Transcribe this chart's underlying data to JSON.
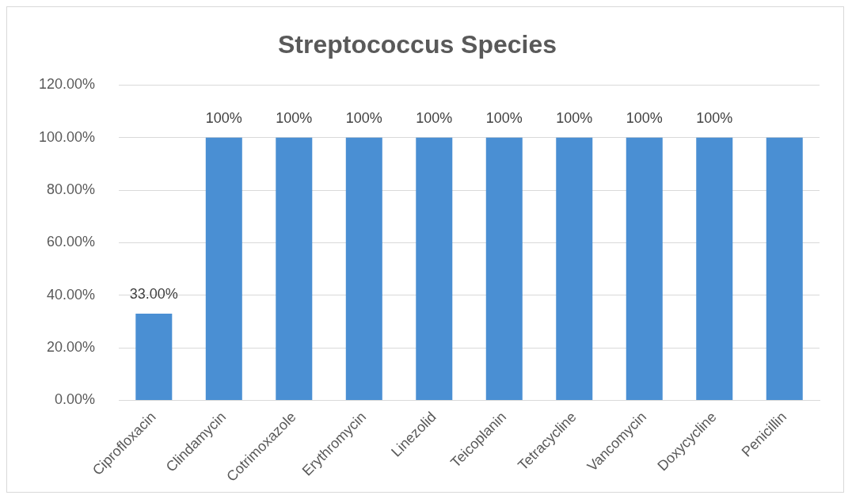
{
  "chart_data": {
    "type": "bar",
    "title": "Streptococcus Species",
    "categories": [
      "Ciprofloxacin",
      "Clindamycin",
      "Cotrimoxazole",
      "Erythromycin",
      "Linezolid",
      "Teicoplanin",
      "Tetracycline",
      "Vancomycin",
      "Doxycycline",
      "Penicillin"
    ],
    "values": [
      33,
      100,
      100,
      100,
      100,
      100,
      100,
      100,
      100,
      100
    ],
    "value_labels": [
      "33.00%",
      "100%",
      "100%",
      "100%",
      "100%",
      "100%",
      "100%",
      "100%",
      "100%",
      null
    ],
    "color": "#4a8fd3",
    "ylim": [
      0,
      120
    ],
    "yticks": [
      {
        "value": 0,
        "label": "0.00%"
      },
      {
        "value": 20,
        "label": "20.00%"
      },
      {
        "value": 40,
        "label": "40.00%"
      },
      {
        "value": 60,
        "label": "60.00%"
      },
      {
        "value": 80,
        "label": "80.00%"
      },
      {
        "value": 100,
        "label": "100.00%"
      },
      {
        "value": 120,
        "label": "120.00%"
      }
    ],
    "grid": "y",
    "legend": false
  }
}
